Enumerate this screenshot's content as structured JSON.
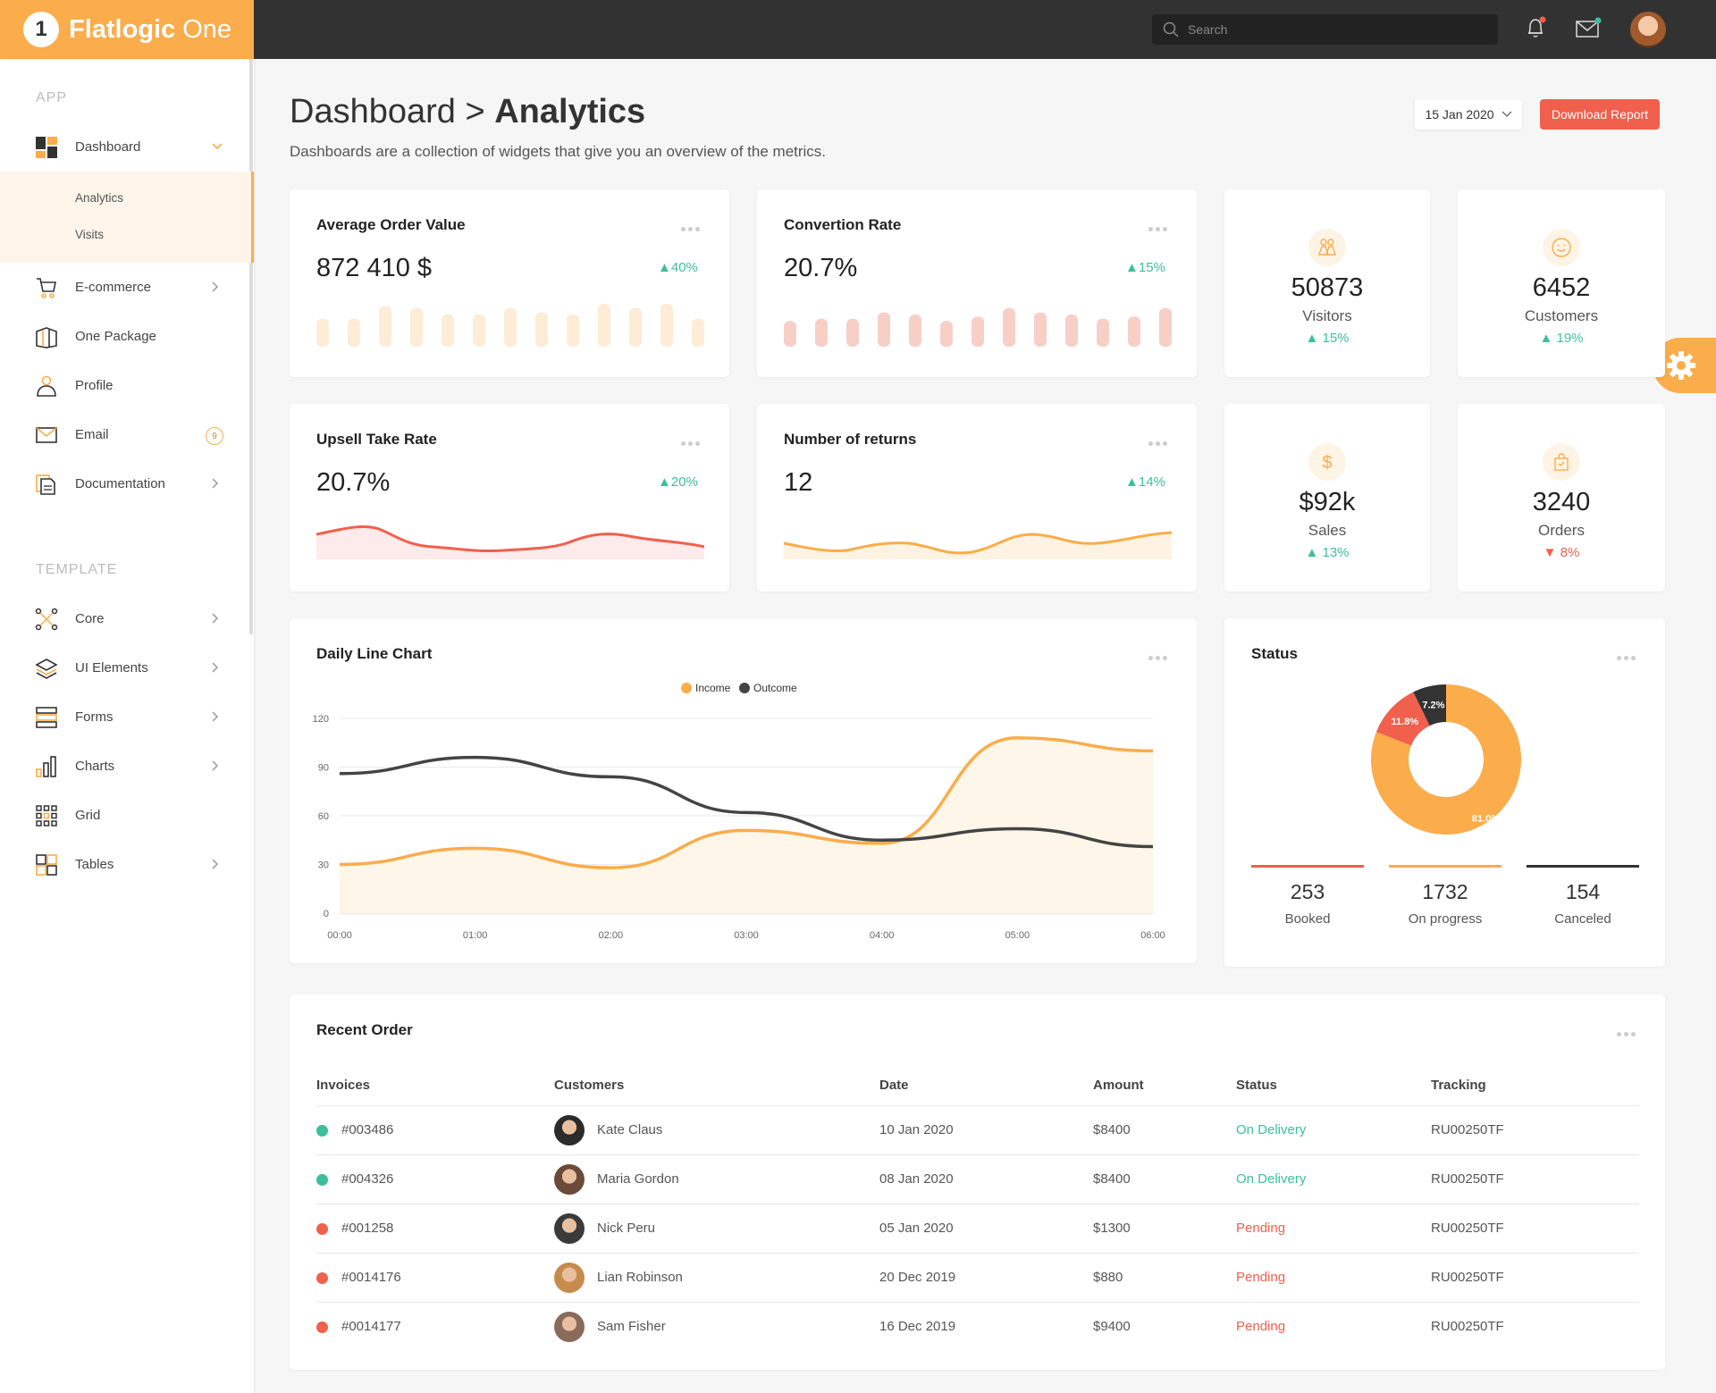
{
  "brand": {
    "name_bold": "Flatlogic",
    "name_light": "One",
    "logo_glyph": "1"
  },
  "topbar": {
    "search_placeholder": "Search"
  },
  "sidebar": {
    "section_app": "APP",
    "section_template": "TEMPLATE",
    "dashboard": "Dashboard",
    "sub": [
      "Analytics",
      "Visits"
    ],
    "items": [
      {
        "label": "E-commerce",
        "icon": "cart-icon",
        "chev": true
      },
      {
        "label": "One Package",
        "icon": "package-icon",
        "chev": false
      },
      {
        "label": "Profile",
        "icon": "user-icon",
        "chev": false
      },
      {
        "label": "Email",
        "icon": "mail-icon",
        "badge": "9"
      },
      {
        "label": "Documentation",
        "icon": "document-icon",
        "chev": true
      }
    ],
    "template_items": [
      {
        "label": "Core",
        "icon": "core-icon"
      },
      {
        "label": "UI Elements",
        "icon": "layers-icon"
      },
      {
        "label": "Forms",
        "icon": "forms-icon"
      },
      {
        "label": "Charts",
        "icon": "chart-icon"
      },
      {
        "label": "Grid",
        "icon": "grid-icon"
      },
      {
        "label": "Tables",
        "icon": "tables-icon"
      }
    ]
  },
  "header": {
    "title_a": "Dashboard",
    "sep": ">",
    "title_b": "Analytics",
    "subtitle": "Dashboards are a collection of widgets that give you an overview of the metrics.",
    "date": "15 Jan 2020",
    "download": "Download Report"
  },
  "cards": {
    "aov": {
      "title": "Average Order Value",
      "value": "872 410 $",
      "pct": "40%",
      "bars": [
        0.65,
        0.65,
        0.95,
        0.9,
        0.75,
        0.75,
        0.9,
        0.8,
        0.75,
        1.0,
        0.9,
        1.0,
        0.65
      ]
    },
    "conv": {
      "title": "Convertion Rate",
      "value": "20.7%",
      "pct": "15%",
      "bars": [
        0.6,
        0.65,
        0.65,
        0.8,
        0.75,
        0.6,
        0.7,
        0.9,
        0.8,
        0.75,
        0.65,
        0.7,
        0.9
      ]
    },
    "upsell": {
      "title": "Upsell Take Rate",
      "value": "20.7%",
      "pct": "20%"
    },
    "returns": {
      "title": "Number of returns",
      "value": "12",
      "pct": "14%"
    }
  },
  "kpis": [
    {
      "value": "50873",
      "label": "Visitors",
      "pct": "15%",
      "dir": "up",
      "icon": "visitors-icon"
    },
    {
      "value": "6452",
      "label": "Customers",
      "pct": "19%",
      "dir": "up",
      "icon": "smile-icon"
    },
    {
      "value": "$92k",
      "label": "Sales",
      "pct": "13%",
      "dir": "up",
      "icon": "dollar-icon"
    },
    {
      "value": "3240",
      "label": "Orders",
      "pct": "8%",
      "dir": "down",
      "icon": "bag-icon"
    }
  ],
  "daily": {
    "title": "Daily Line Chart"
  },
  "chart_data": {
    "type": "area",
    "x": [
      "00:00",
      "01:00",
      "02:00",
      "03:00",
      "04:00",
      "05:00",
      "06:00"
    ],
    "series": [
      {
        "name": "Income",
        "values": [
          30,
          40,
          28,
          51,
          43,
          108,
          100
        ],
        "color": "#fbac4b"
      },
      {
        "name": "Outcome",
        "values": [
          86,
          96,
          84,
          62,
          45,
          52,
          41
        ],
        "color": "#444444"
      }
    ],
    "yticks": [
      0,
      30,
      60,
      90,
      120
    ],
    "ylim": [
      0,
      120
    ]
  },
  "status": {
    "title": "Status",
    "slices": [
      {
        "label": "81.0%",
        "value": 81.0,
        "color": "#fbac4b"
      },
      {
        "label": "11.8%",
        "value": 11.8,
        "color": "#f0604d"
      },
      {
        "label": "7.2%",
        "value": 7.2,
        "color": "#333333"
      }
    ],
    "cols": [
      {
        "value": "253",
        "label": "Booked",
        "color": "#f0604d"
      },
      {
        "value": "1732",
        "label": "On progress",
        "color": "#fbac4b"
      },
      {
        "value": "154",
        "label": "Canceled",
        "color": "#333333"
      }
    ]
  },
  "orders": {
    "title": "Recent Order",
    "headers": [
      "Invoices",
      "Customers",
      "Date",
      "Amount",
      "Status",
      "Tracking"
    ],
    "rows": [
      {
        "invoice": "#003486",
        "customer": "Kate Claus",
        "date": "10 Jan 2020",
        "amount": "$8400",
        "status": "On Delivery",
        "tracking": "RU00250TF",
        "state": "ok"
      },
      {
        "invoice": "#004326",
        "customer": "Maria Gordon",
        "date": "08 Jan 2020",
        "amount": "$8400",
        "status": "On Delivery",
        "tracking": "RU00250TF",
        "state": "ok"
      },
      {
        "invoice": "#001258",
        "customer": "Nick Peru",
        "date": "05 Jan 2020",
        "amount": "$1300",
        "status": "Pending",
        "tracking": "RU00250TF",
        "state": "pending"
      },
      {
        "invoice": "#0014176",
        "customer": "Lian Robinson",
        "date": "20 Dec 2019",
        "amount": "$880",
        "status": "Pending",
        "tracking": "RU00250TF",
        "state": "pending"
      },
      {
        "invoice": "#0014177",
        "customer": "Sam Fisher",
        "date": "16 Dec 2019",
        "amount": "$9400",
        "status": "Pending",
        "tracking": "RU00250TF",
        "state": "pending"
      }
    ]
  },
  "colors": {
    "accent": "#fbac4b",
    "danger": "#f0604d",
    "success": "#3cbf9c",
    "dark": "#323232"
  }
}
